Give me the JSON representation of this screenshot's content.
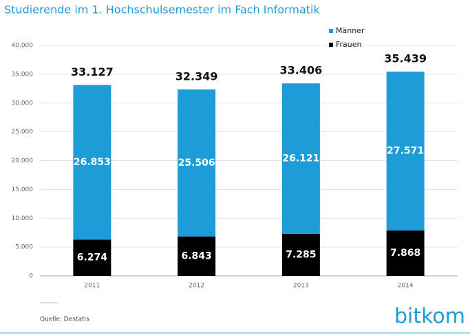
{
  "chart_data": {
    "type": "stacked_bar",
    "title": "Studierende im 1. Hochschulsemester im Fach Informatik",
    "categories": [
      "2011",
      "2012",
      "2013",
      "2014"
    ],
    "series": [
      {
        "name": "Frauen",
        "color": "#000000",
        "values": [
          6274,
          6843,
          7285,
          7868
        ],
        "value_labels": [
          "6.274",
          "6.843",
          "7.285",
          "7.868"
        ]
      },
      {
        "name": "Männer",
        "color": "#1e9cd7",
        "values": [
          26853,
          25506,
          26121,
          27571
        ],
        "value_labels": [
          "26.853",
          "25.506",
          "26.121",
          "27.571"
        ]
      }
    ],
    "totals": {
      "values": [
        33127,
        32349,
        33406,
        35439
      ],
      "value_labels": [
        "33.127",
        "32.349",
        "33.406",
        "35.439"
      ]
    },
    "ylim": [
      0,
      40000
    ],
    "yticks": [
      0,
      {
        "value": 5000,
        "label": "5.000"
      },
      {
        "value": 10000,
        "label": "10.000"
      },
      {
        "value": 15000,
        "label": "15.000"
      },
      {
        "value": 20000,
        "label": "20.000"
      },
      {
        "value": 25000,
        "label": "25.000"
      },
      {
        "value": 30000,
        "label": "30.000"
      },
      {
        "value": 35000,
        "label": "35.000"
      },
      {
        "value": 40000,
        "label": "40.000"
      }
    ],
    "grid": true,
    "legend": "top-right",
    "source": "Quelle: Destatis",
    "logo": "bitkom"
  }
}
